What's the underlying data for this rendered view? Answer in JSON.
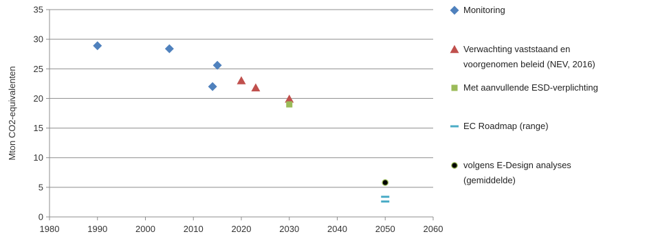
{
  "chart_data": {
    "type": "scatter",
    "title": "",
    "xlabel": "",
    "ylabel": "Mton CO2-equivalenten",
    "xlim": [
      1980,
      2060
    ],
    "ylim": [
      0,
      35
    ],
    "x_ticks": [
      1980,
      1990,
      2000,
      2010,
      2020,
      2030,
      2040,
      2050,
      2060
    ],
    "y_ticks": [
      0,
      5,
      10,
      15,
      20,
      25,
      30,
      35
    ],
    "grid": "horizontal",
    "legend_position": "right",
    "series": [
      {
        "name": "Monitoring",
        "marker": "diamond",
        "color": "#4F81BD",
        "points": [
          {
            "x": 1990,
            "y": 28.9
          },
          {
            "x": 2005,
            "y": 28.4
          },
          {
            "x": 2014,
            "y": 22.0
          },
          {
            "x": 2015,
            "y": 25.6
          }
        ]
      },
      {
        "name": "Verwachting vaststaand en voorgenomen beleid (NEV, 2016)",
        "legend_lines": [
          "Verwachting vaststaand en",
          "voorgenomen beleid (NEV, 2016)"
        ],
        "marker": "triangle",
        "color": "#C0504D",
        "points": [
          {
            "x": 2020,
            "y": 23.0
          },
          {
            "x": 2023,
            "y": 21.8
          },
          {
            "x": 2030,
            "y": 19.9
          }
        ]
      },
      {
        "name": "Met aanvullende ESD-verplichting",
        "marker": "square",
        "color": "#9BBB59",
        "points": [
          {
            "x": 2030,
            "y": 19.0
          }
        ]
      },
      {
        "name": "EC Roadmap (range)",
        "marker": "dash",
        "color": "#4BACC6",
        "points": [
          {
            "x": 2050,
            "y": 3.4
          },
          {
            "x": 2050,
            "y": 2.6
          }
        ]
      },
      {
        "name": "volgens E-Design analyses (gemiddelde)",
        "legend_lines": [
          "volgens E-Design analyses",
          "(gemiddelde)"
        ],
        "marker": "circle",
        "color": "#000000",
        "accent": "#9BBB59",
        "points": [
          {
            "x": 2050,
            "y": 5.8
          }
        ]
      }
    ]
  }
}
